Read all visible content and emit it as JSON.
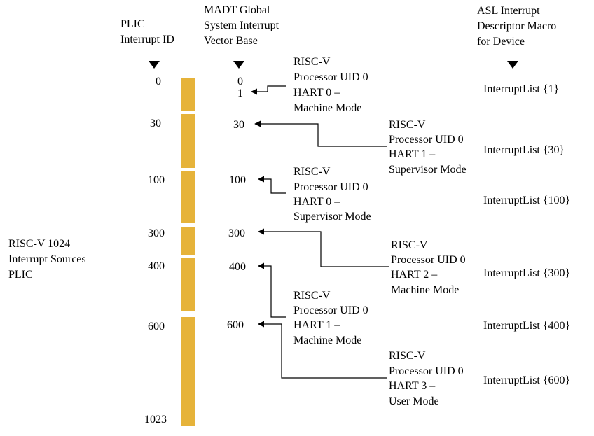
{
  "colors": {
    "bar": "#e6b33a",
    "line": "#000000",
    "background": "#ffffff"
  },
  "headers": {
    "plic_id": [
      "PLIC",
      "Interrupt ID"
    ],
    "madt_base": [
      "MADT Global",
      "System Interrupt",
      "Vector Base"
    ],
    "asl_macro": [
      "ASL Interrupt",
      "Descriptor Macro",
      "for Device"
    ]
  },
  "plic_label": [
    "RISC-V 1024",
    "Interrupt Sources",
    "PLIC"
  ],
  "plic_ids": [
    "0",
    "30",
    "100",
    "300",
    "400",
    "600",
    "1023"
  ],
  "madt_bases": [
    "0",
    "1",
    "30",
    "100",
    "300",
    "400",
    "600"
  ],
  "processors": [
    {
      "lines": [
        "RISC-V",
        "Processor UID 0",
        "HART 0 –",
        "Machine Mode"
      ]
    },
    {
      "lines": [
        "RISC-V",
        "Processor UID 0",
        "HART 1 –",
        "Supervisor Mode"
      ]
    },
    {
      "lines": [
        "RISC-V",
        "Processor UID 0",
        "HART 0 –",
        "Supervisor Mode"
      ]
    },
    {
      "lines": [
        "RISC-V",
        "Processor UID 0",
        "HART 2 –",
        "Machine Mode"
      ]
    },
    {
      "lines": [
        "RISC-V",
        "Processor UID 0",
        "HART 1 –",
        "Machine Mode"
      ]
    },
    {
      "lines": [
        "RISC-V",
        "Processor UID 0",
        "HART 3 –",
        "User Mode"
      ]
    }
  ],
  "interrupt_lists": [
    "InterruptList {1}",
    "InterruptList {30}",
    "InterruptList {100}",
    "InterruptList {300}",
    "InterruptList {400}",
    "InterruptList {600}"
  ]
}
